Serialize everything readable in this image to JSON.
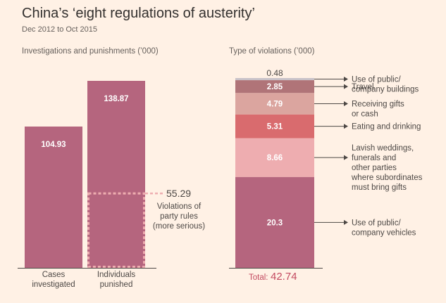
{
  "title": "China’s ‘eight regulations of austerity’",
  "subtitle": "Dec 2012 to Oct 2015",
  "colors": {
    "background": "#fff1e5",
    "bar": "#b5657e",
    "seg_vehicles": "#b5657e",
    "seg_weddings": "#eeadb0",
    "seg_eating": "#d96b6e",
    "seg_gifts": "#dba59f",
    "seg_travel": "#b07478",
    "seg_buildings": "#c8c2c8",
    "total": "#c34a60"
  },
  "chart_data": [
    {
      "type": "bar",
      "title": "Investigations and punishments (’000)",
      "categories": [
        "Cases investigated",
        "Individuals punished"
      ],
      "category_lines": [
        [
          "Cases",
          "investigated"
        ],
        [
          "Individuals",
          "punished"
        ]
      ],
      "values": [
        104.93,
        138.87
      ],
      "ylim": [
        0,
        138.87
      ],
      "annotation": {
        "value": 55.29,
        "value_label": "55.29",
        "category": "Individuals punished",
        "lines": [
          "Violations of",
          "party rules",
          "(more serious)"
        ]
      }
    },
    {
      "type": "bar",
      "stacked": true,
      "title": "Type of violations (’000)",
      "segments": [
        {
          "key": "seg_vehicles",
          "value": 20.3,
          "value_label": "20.3",
          "label_lines": [
            "Use of public/",
            "company vehicles"
          ]
        },
        {
          "key": "seg_weddings",
          "value": 8.66,
          "value_label": "8.66",
          "label_lines": [
            "Lavish weddings,",
            "funerals and",
            "other parties",
            "where subordinates",
            "must bring gifts"
          ]
        },
        {
          "key": "seg_eating",
          "value": 5.31,
          "value_label": "5.31",
          "label_lines": [
            "Eating and drinking"
          ]
        },
        {
          "key": "seg_gifts",
          "value": 4.79,
          "value_label": "4.79",
          "label_lines": [
            "Receiving gifts",
            "or cash"
          ]
        },
        {
          "key": "seg_travel",
          "value": 2.85,
          "value_label": "2.85",
          "label_lines": [
            "Travel"
          ]
        },
        {
          "key": "seg_buildings",
          "value": 0.48,
          "value_label": "0.48",
          "label_lines": [
            "Use of public/",
            "company buildings"
          ]
        }
      ],
      "total_label": "Total:",
      "total_value": "42.74"
    }
  ]
}
